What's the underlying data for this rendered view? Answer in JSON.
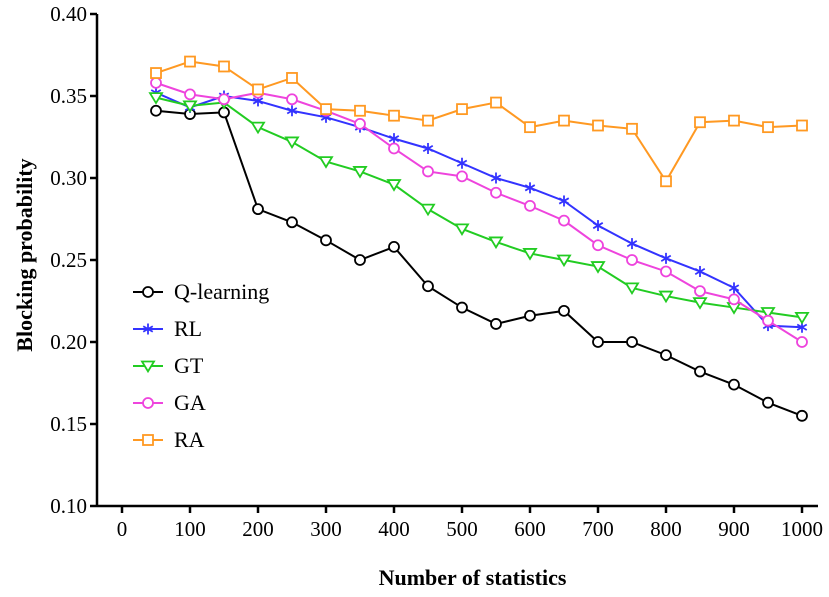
{
  "chart_data": {
    "type": "line",
    "title": "",
    "xlabel": "Number of statistics",
    "ylabel": "Blocking probability",
    "xlim": [
      0,
      1000
    ],
    "ylim": [
      0.1,
      0.4
    ],
    "xticks": [
      0,
      100,
      200,
      300,
      400,
      500,
      600,
      700,
      800,
      900,
      1000
    ],
    "yticks": [
      0.1,
      0.15,
      0.2,
      0.25,
      0.3,
      0.35,
      0.4
    ],
    "xtick_labels": [
      "0",
      "100",
      "200",
      "300",
      "400",
      "500",
      "600",
      "700",
      "800",
      "900",
      "1000"
    ],
    "ytick_labels": [
      "0.10",
      "0.15",
      "0.20",
      "0.25",
      "0.30",
      "0.35",
      "0.40"
    ],
    "grid": false,
    "legend_position": "left-lower",
    "x": [
      50,
      100,
      150,
      200,
      250,
      300,
      350,
      400,
      450,
      500,
      550,
      600,
      650,
      700,
      750,
      800,
      850,
      900,
      950,
      1000
    ],
    "series": [
      {
        "name": "Q-learning",
        "color": "#000000",
        "marker": "circle",
        "values": [
          0.341,
          0.339,
          0.34,
          0.281,
          0.273,
          0.262,
          0.25,
          0.258,
          0.234,
          0.221,
          0.211,
          0.216,
          0.219,
          0.2,
          0.2,
          0.192,
          0.182,
          0.174,
          0.163,
          0.155
        ]
      },
      {
        "name": "RL",
        "color": "#3333ff",
        "marker": "asterisk",
        "values": [
          0.352,
          0.343,
          0.35,
          0.347,
          0.341,
          0.337,
          0.331,
          0.324,
          0.318,
          0.309,
          0.3,
          0.294,
          0.286,
          0.271,
          0.26,
          0.251,
          0.243,
          0.233,
          0.21,
          0.209
        ]
      },
      {
        "name": "GT",
        "color": "#22cc22",
        "marker": "triangle-down",
        "values": [
          0.349,
          0.344,
          0.346,
          0.331,
          0.322,
          0.31,
          0.304,
          0.296,
          0.281,
          0.269,
          0.261,
          0.254,
          0.25,
          0.246,
          0.233,
          0.228,
          0.224,
          0.221,
          0.218,
          0.215
        ]
      },
      {
        "name": "GA",
        "color": "#ee44dd",
        "marker": "circle",
        "values": [
          0.358,
          0.351,
          0.348,
          0.352,
          0.348,
          0.341,
          0.333,
          0.318,
          0.304,
          0.301,
          0.291,
          0.283,
          0.274,
          0.259,
          0.25,
          0.243,
          0.231,
          0.226,
          0.213,
          0.2
        ]
      },
      {
        "name": "RA",
        "color": "#ff9922",
        "marker": "square",
        "values": [
          0.364,
          0.371,
          0.368,
          0.354,
          0.361,
          0.342,
          0.341,
          0.338,
          0.335,
          0.342,
          0.346,
          0.331,
          0.335,
          0.332,
          0.33,
          0.298,
          0.334,
          0.335,
          0.331,
          0.332
        ]
      }
    ]
  }
}
